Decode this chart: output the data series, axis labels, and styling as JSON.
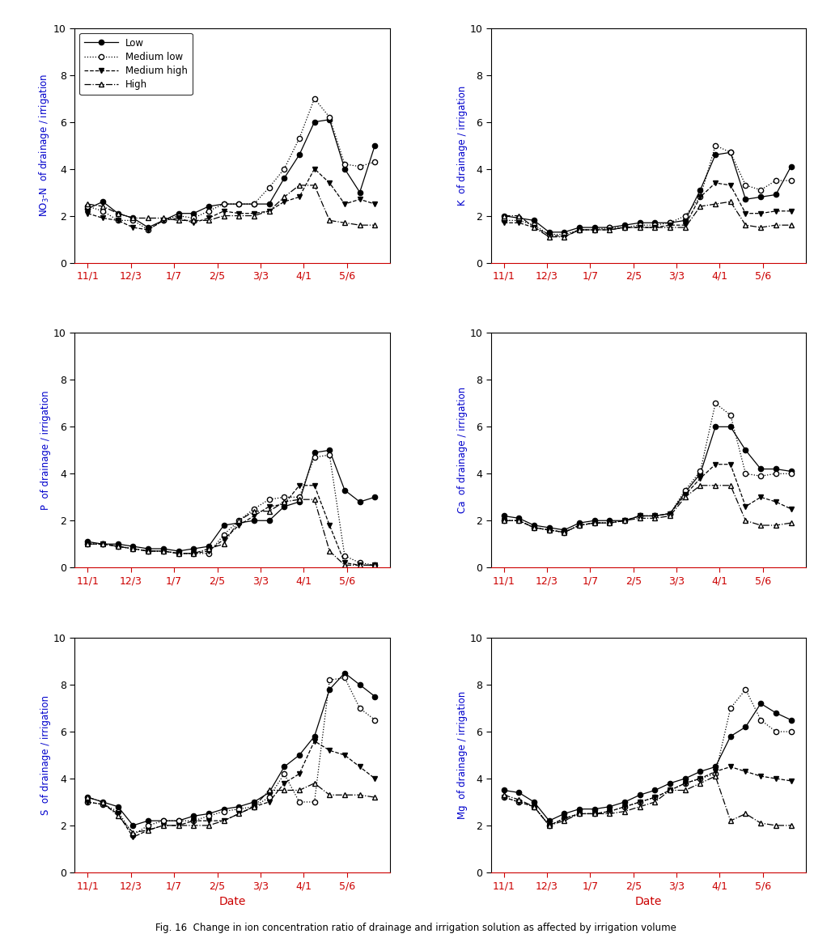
{
  "x_labels": [
    "11/1",
    "12/3",
    "1/7",
    "2/5",
    "3/3",
    "4/1",
    "5/6"
  ],
  "series_labels": [
    "Low",
    "Medium low",
    "Medium high",
    "High"
  ],
  "line_styles": [
    "-",
    ":",
    "--",
    "-."
  ],
  "markers": [
    "o",
    "o",
    "v",
    "^"
  ],
  "marker_fills": [
    "black",
    "white",
    "black",
    "white"
  ],
  "x_pts": [
    0,
    0.35,
    0.7,
    1.05,
    1.4,
    1.75,
    2.1,
    2.45,
    2.8,
    3.15,
    3.5,
    3.85,
    4.2,
    4.55,
    4.9,
    5.25,
    5.6,
    5.95,
    6.3,
    6.65
  ],
  "NO3N": {
    "Low": [
      2.3,
      2.6,
      2.1,
      1.9,
      1.5,
      1.8,
      2.1,
      2.1,
      2.4,
      2.5,
      2.5,
      2.5,
      2.5,
      3.6,
      4.6,
      6.0,
      6.1,
      4.0,
      3.0,
      5.0
    ],
    "Medium low": [
      2.4,
      2.2,
      1.8,
      1.8,
      1.4,
      1.8,
      2.0,
      1.9,
      2.2,
      2.5,
      2.5,
      2.5,
      3.2,
      4.0,
      5.3,
      7.0,
      6.2,
      4.2,
      4.1,
      4.3
    ],
    "Medium high": [
      2.1,
      1.9,
      1.8,
      1.5,
      1.4,
      1.8,
      1.9,
      1.7,
      1.9,
      2.2,
      2.1,
      2.1,
      2.2,
      2.6,
      2.8,
      4.0,
      3.4,
      2.5,
      2.7,
      2.5
    ],
    "High": [
      2.5,
      2.4,
      2.1,
      1.9,
      1.9,
      1.9,
      1.8,
      1.8,
      1.8,
      2.0,
      2.0,
      2.0,
      2.2,
      2.8,
      3.3,
      3.3,
      1.8,
      1.7,
      1.6,
      1.6
    ]
  },
  "K": {
    "Low": [
      2.0,
      1.9,
      1.8,
      1.3,
      1.3,
      1.5,
      1.5,
      1.5,
      1.6,
      1.7,
      1.7,
      1.7,
      1.8,
      3.1,
      4.6,
      4.7,
      2.7,
      2.8,
      2.9,
      4.1
    ],
    "Medium low": [
      1.8,
      1.8,
      1.6,
      1.2,
      1.2,
      1.4,
      1.4,
      1.5,
      1.5,
      1.6,
      1.6,
      1.7,
      2.0,
      2.8,
      5.0,
      4.7,
      3.3,
      3.1,
      3.5,
      3.5
    ],
    "Medium high": [
      1.7,
      1.7,
      1.5,
      1.2,
      1.1,
      1.4,
      1.4,
      1.4,
      1.5,
      1.5,
      1.5,
      1.6,
      1.6,
      2.8,
      3.4,
      3.3,
      2.1,
      2.1,
      2.2,
      2.2
    ],
    "High": [
      2.0,
      2.0,
      1.5,
      1.1,
      1.1,
      1.4,
      1.4,
      1.4,
      1.5,
      1.5,
      1.5,
      1.5,
      1.5,
      2.4,
      2.5,
      2.6,
      1.6,
      1.5,
      1.6,
      1.6
    ]
  },
  "P": {
    "Low": [
      1.1,
      1.0,
      1.0,
      0.9,
      0.8,
      0.8,
      0.7,
      0.8,
      0.9,
      1.8,
      1.9,
      2.0,
      2.0,
      2.6,
      2.8,
      4.9,
      5.0,
      3.3,
      2.8,
      3.0
    ],
    "Medium low": [
      1.0,
      1.0,
      0.9,
      0.8,
      0.7,
      0.7,
      0.6,
      0.6,
      0.6,
      1.4,
      2.0,
      2.5,
      2.9,
      3.0,
      3.0,
      4.7,
      4.8,
      0.5,
      0.2,
      0.1
    ],
    "Medium high": [
      1.0,
      1.0,
      0.9,
      0.8,
      0.7,
      0.7,
      0.6,
      0.6,
      0.7,
      1.2,
      1.8,
      2.2,
      2.6,
      2.7,
      3.5,
      3.5,
      1.8,
      0.2,
      0.1,
      0.1
    ],
    "High": [
      1.0,
      1.0,
      0.9,
      0.8,
      0.7,
      0.7,
      0.6,
      0.6,
      0.8,
      1.0,
      2.0,
      2.4,
      2.4,
      2.8,
      2.9,
      2.9,
      0.7,
      0.1,
      0.1,
      0.1
    ]
  },
  "Ca": {
    "Low": [
      2.2,
      2.1,
      1.8,
      1.7,
      1.6,
      1.9,
      2.0,
      2.0,
      2.0,
      2.2,
      2.2,
      2.3,
      3.2,
      4.0,
      6.0,
      6.0,
      5.0,
      4.2,
      4.2,
      4.1
    ],
    "Medium low": [
      2.0,
      2.0,
      1.7,
      1.6,
      1.5,
      1.8,
      1.9,
      1.9,
      2.0,
      2.2,
      2.2,
      2.3,
      3.3,
      4.1,
      7.0,
      6.5,
      4.0,
      3.9,
      4.0,
      4.0
    ],
    "Medium high": [
      2.0,
      2.0,
      1.7,
      1.6,
      1.5,
      1.8,
      1.9,
      1.9,
      2.0,
      2.2,
      2.2,
      2.3,
      3.1,
      3.8,
      4.4,
      4.4,
      2.6,
      3.0,
      2.8,
      2.5
    ],
    "High": [
      2.0,
      2.0,
      1.7,
      1.6,
      1.5,
      1.8,
      1.9,
      1.9,
      2.0,
      2.1,
      2.1,
      2.2,
      3.0,
      3.5,
      3.5,
      3.5,
      2.0,
      1.8,
      1.8,
      1.9
    ]
  },
  "S": {
    "Low": [
      3.2,
      3.0,
      2.8,
      2.0,
      2.2,
      2.2,
      2.2,
      2.4,
      2.5,
      2.7,
      2.8,
      3.0,
      3.4,
      4.5,
      5.0,
      5.8,
      7.8,
      8.5,
      8.0,
      7.5
    ],
    "Medium low": [
      3.0,
      2.9,
      2.6,
      1.6,
      2.0,
      2.2,
      2.2,
      2.2,
      2.4,
      2.6,
      2.7,
      2.8,
      3.2,
      4.2,
      3.0,
      3.0,
      8.2,
      8.3,
      7.0,
      6.5
    ],
    "Medium high": [
      3.0,
      2.9,
      2.5,
      1.5,
      1.8,
      2.0,
      2.0,
      2.2,
      2.2,
      2.2,
      2.5,
      2.8,
      3.0,
      3.8,
      4.2,
      5.6,
      5.2,
      5.0,
      4.5,
      4.0
    ],
    "High": [
      3.2,
      3.0,
      2.4,
      1.7,
      1.8,
      2.0,
      2.0,
      2.0,
      2.0,
      2.2,
      2.5,
      2.8,
      3.5,
      3.5,
      3.5,
      3.8,
      3.3,
      3.3,
      3.3,
      3.2
    ]
  },
  "Mg": {
    "Low": [
      3.5,
      3.4,
      3.0,
      2.2,
      2.5,
      2.7,
      2.7,
      2.8,
      3.0,
      3.3,
      3.5,
      3.8,
      4.0,
      4.3,
      4.5,
      5.8,
      6.2,
      7.2,
      6.8,
      6.5
    ],
    "Medium low": [
      3.2,
      3.0,
      2.8,
      2.0,
      2.3,
      2.5,
      2.5,
      2.6,
      2.8,
      3.0,
      3.2,
      3.5,
      3.8,
      4.0,
      4.2,
      7.0,
      7.8,
      6.5,
      6.0,
      6.0
    ],
    "Medium high": [
      3.2,
      3.0,
      2.8,
      2.0,
      2.3,
      2.5,
      2.5,
      2.6,
      2.8,
      3.0,
      3.2,
      3.5,
      3.8,
      4.0,
      4.3,
      4.5,
      4.3,
      4.1,
      4.0,
      3.9
    ],
    "High": [
      3.3,
      3.1,
      2.8,
      2.0,
      2.2,
      2.5,
      2.5,
      2.5,
      2.6,
      2.8,
      3.0,
      3.5,
      3.5,
      3.8,
      4.1,
      2.2,
      2.5,
      2.1,
      2.0,
      2.0
    ]
  },
  "ylim": [
    0,
    10
  ],
  "yticks": [
    0,
    2,
    4,
    6,
    8,
    10
  ],
  "ylabel_color": "#0000cc",
  "xlabel_color": "#cc0000",
  "figsize": [
    10.27,
    11.59
  ],
  "title": "Fig. 16  Change in ion concentration ratio of drainage and irrigation solution as affected by irrigation volume",
  "title_fontsize": 8.5
}
